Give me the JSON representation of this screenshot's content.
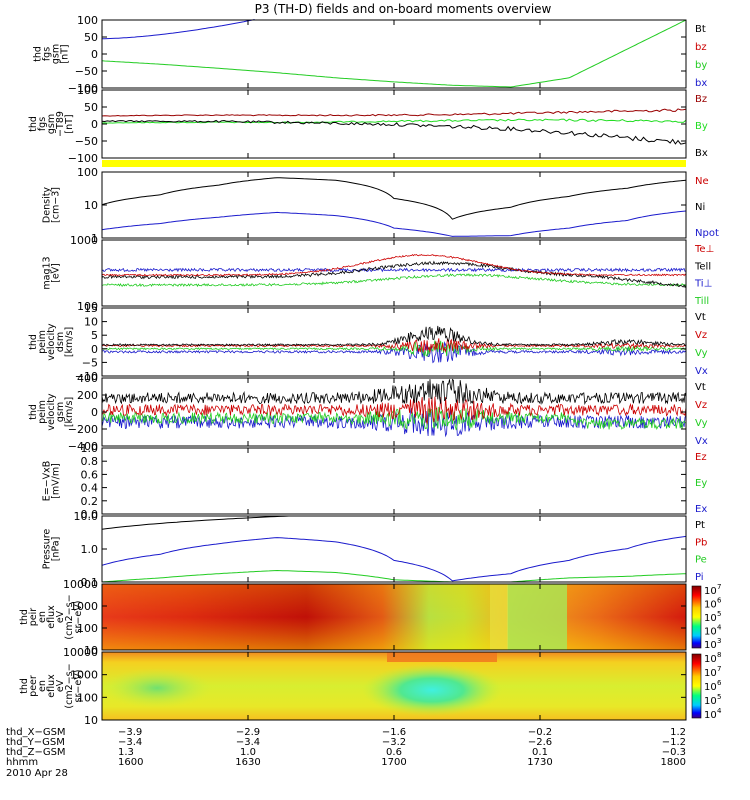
{
  "title": "P3 (TH-D) fields and on-board moments overview",
  "date_label": "2010 Apr 28",
  "chart_data": {
    "type": "multi-panel time series",
    "panels": [
      {
        "id": "fgs",
        "ylabel": [
          "thd",
          "fgs",
          "gsm",
          "[nT]"
        ],
        "ytick_labels": [
          "100",
          "50",
          "0",
          "−50",
          "−100"
        ],
        "ylim": [
          -100,
          100
        ],
        "series": [
          {
            "name": "Bt",
            "color": "#000000",
            "values": []
          },
          {
            "name": "bz",
            "color": "#cc0000",
            "values": []
          },
          {
            "name": "by",
            "color": "#22cc22",
            "values": [
              -20,
              -30,
              -42,
              -55,
              -70,
              -82,
              -92,
              -97,
              -70,
              15,
              100
            ]
          },
          {
            "name": "bx",
            "color": "#1a1acc",
            "values": [
              45,
              62,
              85,
              108
            ]
          }
        ]
      },
      {
        "id": "fgs_t89",
        "ylabel": [
          "thd",
          "fgs",
          "gsm",
          "−T89",
          "[nT]"
        ],
        "ytick_labels": [
          "100",
          "50",
          "0",
          "−50",
          "−100"
        ],
        "ylim": [
          -130,
          125
        ],
        "series": [
          {
            "name": "Bz",
            "color": "#990000",
            "values": [
              28,
              30,
              31,
              30,
              30,
              31,
              33,
              37,
              42,
              46,
              50
            ]
          },
          {
            "name": "By",
            "color": "#22dd22",
            "values": [
              2,
              3,
              4,
              3,
              5,
              8,
              10,
              12,
              12,
              10,
              8
            ]
          },
          {
            "name": "Bx",
            "color": "#000000",
            "values": [
              8,
              8,
              7,
              4,
              0,
              -4,
              -12,
              -20,
              -35,
              -55,
              -72
            ]
          }
        ]
      },
      {
        "id": "density",
        "ylabel": [
          "Density",
          "[cm−3]"
        ],
        "ytick_labels": [
          "100",
          "10",
          "1"
        ],
        "scale": "log",
        "ylim": [
          0.1,
          150
        ],
        "series": [
          {
            "name": "Ne",
            "color": "#cc0000",
            "values": []
          },
          {
            "name": "Ni",
            "color": "#000000",
            "values": [
              4,
              12,
              35,
              80,
              60,
              8,
              0.8,
              3,
              10,
              25,
              60
            ]
          },
          {
            "name": "Npot",
            "color": "#1a1acc",
            "values": [
              0.25,
              0.5,
              1,
              1.7,
              1.2,
              0.3,
              0.12,
              0.13,
              0.3,
              0.7,
              2
            ]
          }
        ]
      },
      {
        "id": "temperature",
        "ylabel": [
          "mag13",
          "[eV]"
        ],
        "ytick_labels": [
          "1000",
          "100"
        ],
        "series": [
          {
            "name": "Te⊥",
            "color": "#cc0000",
            "values": []
          },
          {
            "name": "Tell",
            "color": "#000000",
            "values": []
          },
          {
            "name": "Ti⊥",
            "color": "#1a1acc",
            "values": []
          },
          {
            "name": "Till",
            "color": "#22cc22",
            "values": []
          }
        ]
      },
      {
        "id": "velocity_esa",
        "ylabel": [
          "thd",
          "peim",
          "velocity",
          "dsm",
          "[km/s]"
        ],
        "ytick_labels": [
          "15",
          "10",
          "5",
          "0",
          "−5",
          "−10"
        ],
        "ylim": [
          -10,
          15
        ],
        "series": [
          {
            "name": "Vt",
            "color": "#000000",
            "values": []
          },
          {
            "name": "Vz",
            "color": "#cc0000",
            "values": []
          },
          {
            "name": "Vy",
            "color": "#22cc22",
            "values": []
          },
          {
            "name": "Vx",
            "color": "#1a1acc",
            "values": []
          }
        ]
      },
      {
        "id": "velocity_gsm",
        "ylabel": [
          "thd",
          "peim",
          "velocity",
          "gsm",
          "[km/s]"
        ],
        "ytick_labels": [
          "400",
          "200",
          "0",
          "−200",
          "−400"
        ],
        "ylim": [
          -400,
          400
        ],
        "series": [
          {
            "name": "Vt",
            "color": "#000000",
            "values": []
          },
          {
            "name": "Vz",
            "color": "#cc0000",
            "values": []
          },
          {
            "name": "Vy",
            "color": "#22cc22",
            "values": []
          },
          {
            "name": "Vx",
            "color": "#1a1acc",
            "values": []
          }
        ]
      },
      {
        "id": "efield",
        "ylabel": [
          "E=−VxB",
          "[mV/m]"
        ],
        "ytick_labels": [
          "1.0",
          "0.8",
          "0.6",
          "0.4",
          "0.2",
          "0.0"
        ],
        "ylim": [
          0,
          1
        ],
        "series": [
          {
            "name": "Ez",
            "color": "#cc0000",
            "values": []
          },
          {
            "name": "Ey",
            "color": "#22cc22",
            "values": []
          },
          {
            "name": "Ex",
            "color": "#1a1acc",
            "values": []
          }
        ]
      },
      {
        "id": "pressure",
        "ylabel": [
          "Pressure",
          "[nPa]"
        ],
        "ytick_labels": [
          "10.0",
          "1.0",
          "0.1"
        ],
        "scale": "log",
        "series": [
          {
            "name": "Pt",
            "color": "#000000",
            "values": []
          },
          {
            "name": "Pb",
            "color": "#cc0000",
            "values": []
          },
          {
            "name": "Pe",
            "color": "#22cc22",
            "values": []
          },
          {
            "name": "Pi",
            "color": "#1a1acc",
            "values": []
          }
        ]
      },
      {
        "id": "ion_spectrogram",
        "type": "heatmap",
        "ylabel": [
          "thd",
          "peir",
          "en",
          "eflux",
          "eV",
          "(cm2−s−",
          "sr−eV)"
        ],
        "ytick_labels": [
          "10000",
          "1000",
          "100",
          "10"
        ],
        "colorbar_labels": [
          "10",
          "10",
          "10",
          "10",
          "10"
        ],
        "colorbar_exponents": [
          "7",
          "6",
          "5",
          "4",
          "3"
        ]
      },
      {
        "id": "electron_spectrogram",
        "type": "heatmap",
        "ylabel": [
          "thd",
          "peer",
          "en",
          "eflux",
          "eV",
          "(cm2−s−",
          "sr−eV)"
        ],
        "ytick_labels": [
          "10000",
          "1000",
          "100",
          "10"
        ],
        "colorbar_labels": [
          "10",
          "10",
          "10",
          "10",
          "10"
        ],
        "colorbar_exponents": [
          "8",
          "7",
          "6",
          "5",
          "4"
        ]
      }
    ],
    "x_axis": {
      "rows": [
        {
          "label": "thd_X−GSM",
          "values": [
            "−3.9",
            "−2.9",
            "−1.6",
            "−0.2",
            "1.2"
          ]
        },
        {
          "label": "thd_Y−GSM",
          "values": [
            "−3.4",
            "−3.4",
            "−3.2",
            "−2.6",
            "−1.2"
          ]
        },
        {
          "label": "thd_Z−GSM",
          "values": [
            "1.3",
            "1.0",
            "0.6",
            "0.1",
            "−0.3"
          ]
        },
        {
          "label": "hhmm",
          "values": [
            "1600",
            "1630",
            "1700",
            "1730",
            "1800"
          ]
        }
      ]
    }
  }
}
